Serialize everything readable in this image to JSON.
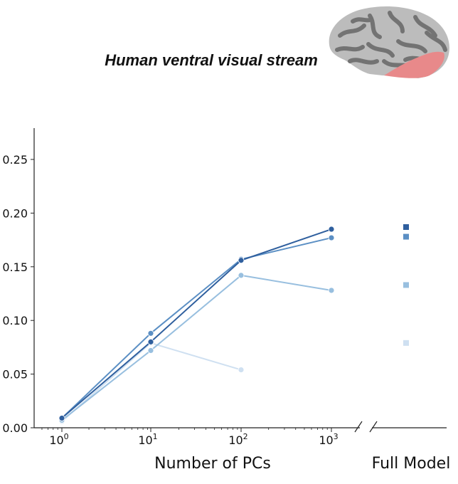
{
  "chart_data": {
    "type": "line",
    "title": "Human ventral visual stream",
    "xlabel": "Number of PCs",
    "xlabel_right": "Full Model",
    "ylabel": "",
    "x_scale": "log",
    "x": [
      1,
      10,
      100,
      1000
    ],
    "x_tick_labels": [
      {
        "base": "10",
        "exp": "0"
      },
      {
        "base": "10",
        "exp": "1"
      },
      {
        "base": "10",
        "exp": "2"
      },
      {
        "base": "10",
        "exp": "3"
      }
    ],
    "ylim": [
      0,
      0.28
    ],
    "y_ticks": [
      "0.00",
      "0.05",
      "0.10",
      "0.15",
      "0.20",
      "0.25"
    ],
    "grid": false,
    "series": [
      {
        "color": "#2f5f9e",
        "values": [
          0.009,
          0.08,
          0.156,
          0.185
        ],
        "full_model": 0.187
      },
      {
        "color": "#5b8fc4",
        "values": [
          0.009,
          0.088,
          0.157,
          0.177
        ],
        "full_model": 0.178
      },
      {
        "color": "#98bfdf",
        "values": [
          0.007,
          0.072,
          0.142,
          0.128
        ],
        "full_model": 0.133
      },
      {
        "color": "#cfe0f1",
        "values": [
          0.006,
          0.079,
          0.054,
          null
        ],
        "full_model": 0.079
      }
    ],
    "brain_colors": {
      "gyri": "#bcbcbc",
      "sulci": "#737373",
      "roi": "#e8898a"
    }
  }
}
